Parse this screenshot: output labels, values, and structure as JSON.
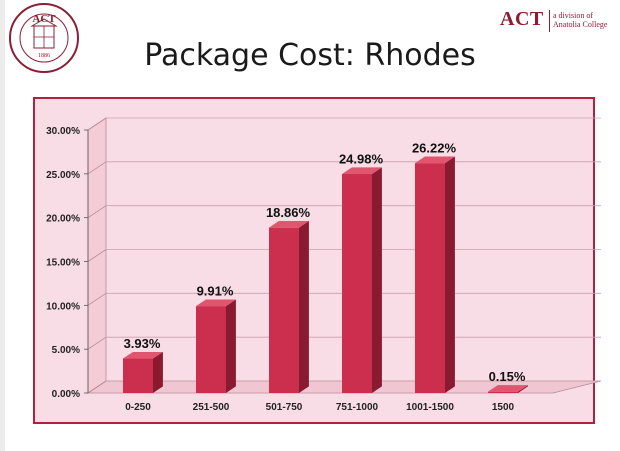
{
  "header": {
    "title": "Package Cost: Rhodes",
    "seal": {
      "monogram": "ACT",
      "year": "1886",
      "ring_text": "AMERICAN COLLEGE OF THESSALONIKI · DIVISION OF ANATOLIA COLLEGE"
    },
    "brand": {
      "name": "ACT",
      "subtitle_line1": "a division of",
      "subtitle_line2": "Anatolia College"
    }
  },
  "colors": {
    "accent": "#8a1f33",
    "bar_front": "#cc2f4d",
    "bar_side": "#8a1a30",
    "bar_top": "#e0566f",
    "plot_bg": "#f8dde6",
    "frame": "#b0203f"
  },
  "chart_data": {
    "type": "bar",
    "categories": [
      "0-250",
      "251-500",
      "501-750",
      "751-1000",
      "1001-1500",
      "1500"
    ],
    "values": [
      3.93,
      9.91,
      18.86,
      24.98,
      26.22,
      0.15
    ],
    "data_labels": [
      "3.93%",
      "9.91%",
      "18.86%",
      "24.98%",
      "26.22%",
      "0.15%"
    ],
    "y_ticks": [
      "0.00%",
      "5.00%",
      "10.00%",
      "15.00%",
      "20.00%",
      "25.00%",
      "30.00%"
    ],
    "ylim": [
      0,
      30
    ],
    "grid": true,
    "style": "3d",
    "title": "",
    "xlabel": "",
    "ylabel": ""
  }
}
